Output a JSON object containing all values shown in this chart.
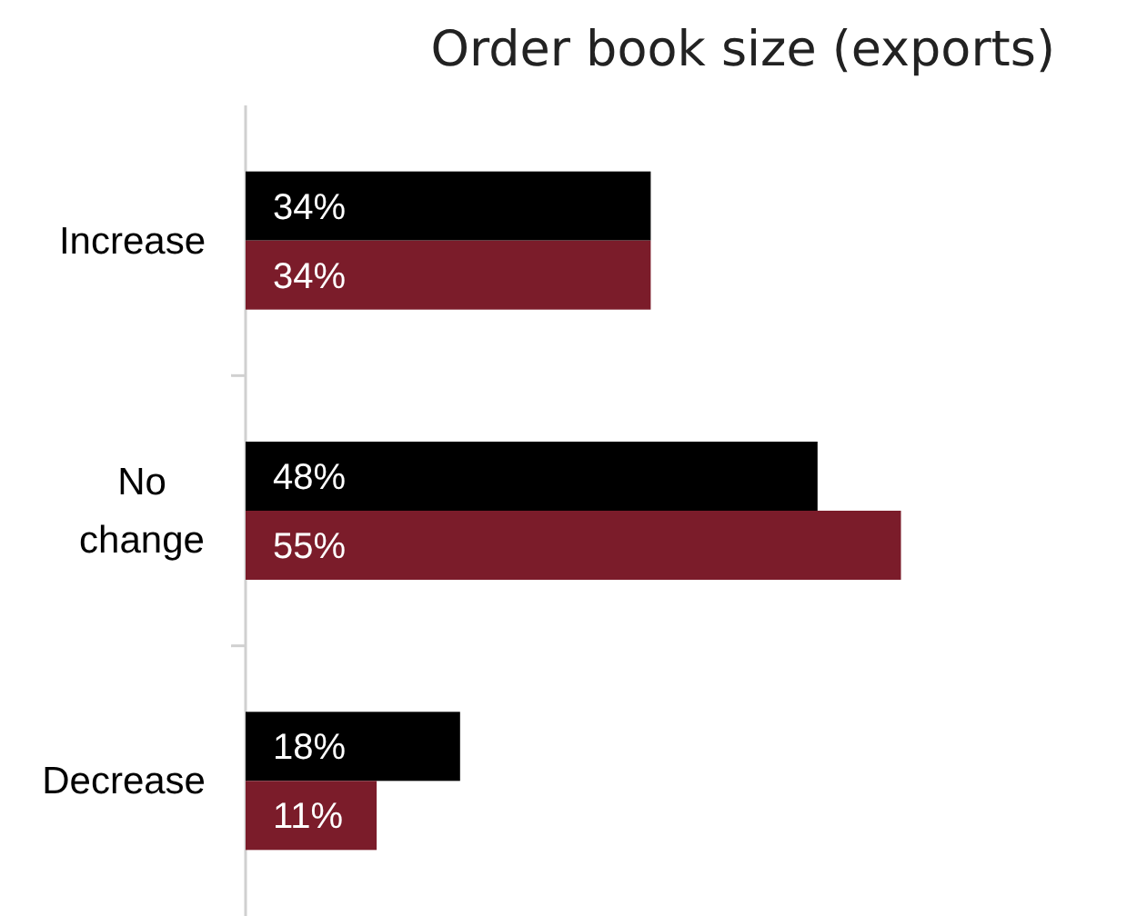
{
  "chart_data": {
    "type": "bar",
    "orientation": "horizontal",
    "title": "Order book size (exports)",
    "categories": [
      "Increase",
      "No\nchange",
      "Decrease"
    ],
    "series": [
      {
        "color": "#000000",
        "values": [
          34,
          48,
          18
        ],
        "value_labels": [
          "34%",
          "48%",
          "18%"
        ]
      },
      {
        "color": "#7b1c2a",
        "values": [
          34,
          55,
          11
        ],
        "value_labels": [
          "34%",
          "55%",
          "11%"
        ]
      }
    ],
    "tick_labels": "y"
  }
}
